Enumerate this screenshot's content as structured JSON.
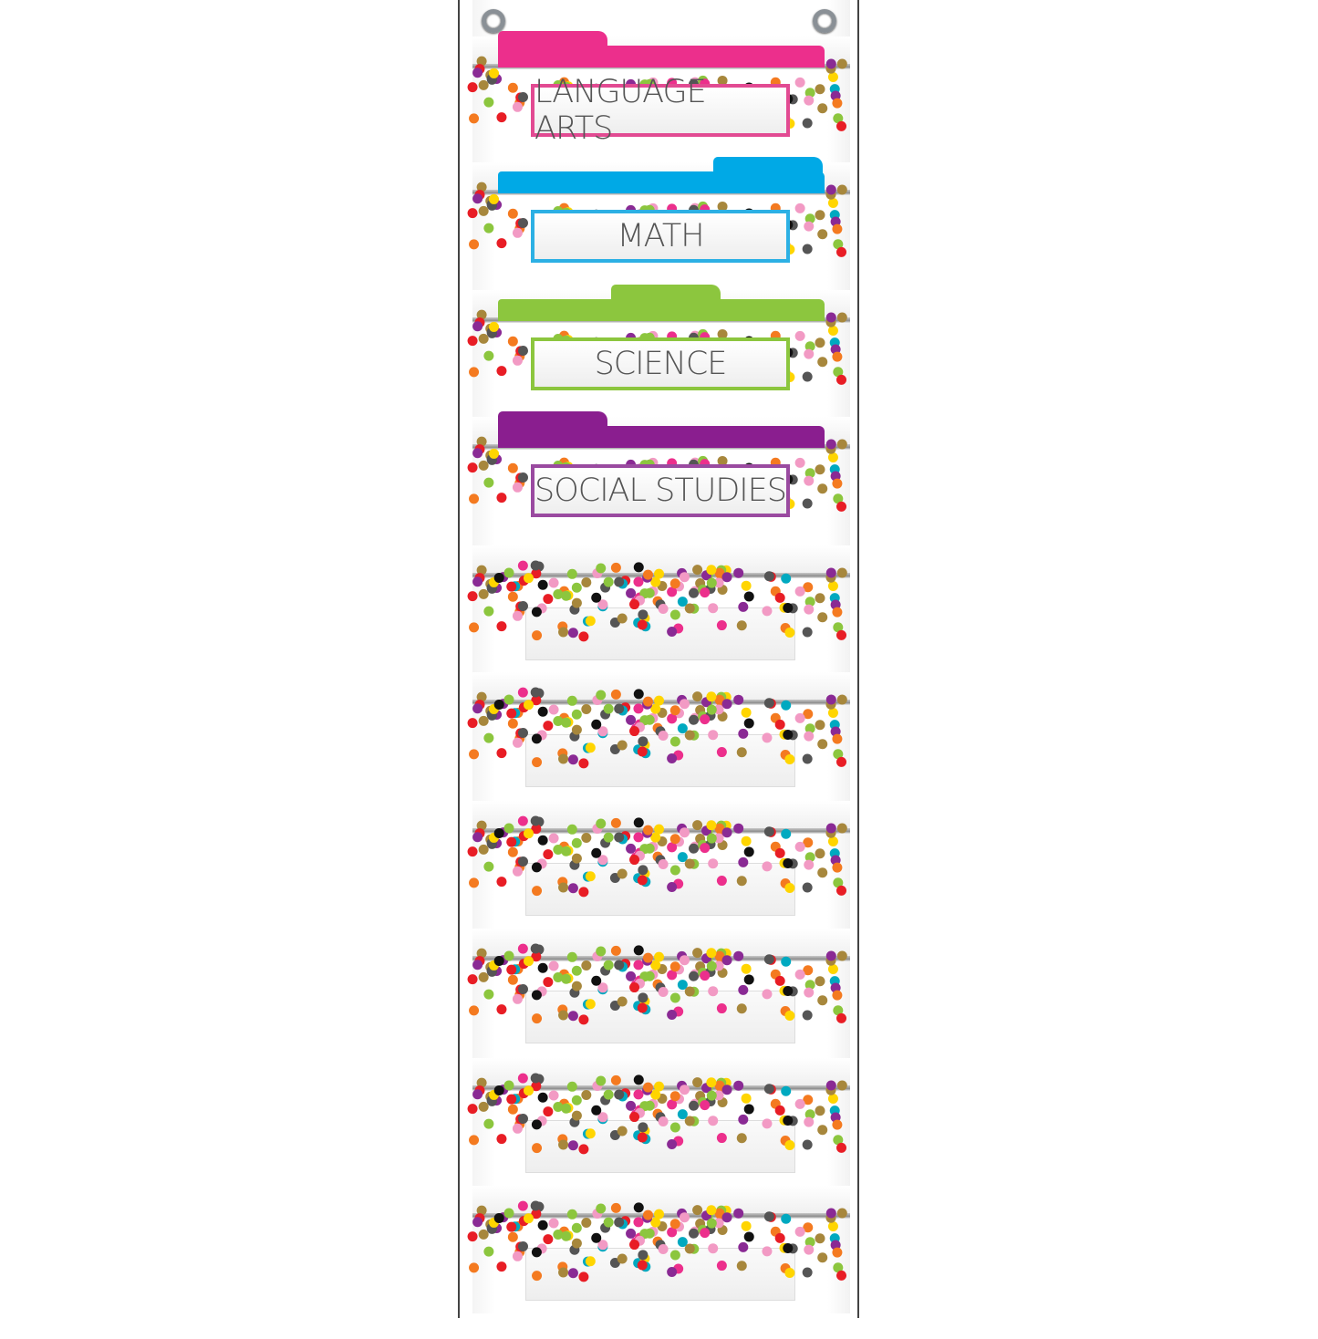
{
  "pockets": [
    {
      "label": "LANGUAGE ARTS",
      "color": "#ec2f8c",
      "border": "#e24a92",
      "tab": "left"
    },
    {
      "label": "MATH",
      "color": "#00a9e6",
      "border": "#2cb0e4",
      "tab": "right"
    },
    {
      "label": "SCIENCE",
      "color": "#8cc63e",
      "border": "#8cc63e",
      "tab": "middle"
    },
    {
      "label": "SOCIAL STUDIES",
      "color": "#8a1e8f",
      "border": "#9a4aa0",
      "tab": "left"
    },
    {
      "label": ""
    },
    {
      "label": ""
    },
    {
      "label": ""
    },
    {
      "label": ""
    },
    {
      "label": ""
    },
    {
      "label": ""
    }
  ],
  "confetti_colors": [
    "#e81d25",
    "#8cc63e",
    "#f47a20",
    "#8a2a94",
    "#00a9c0",
    "#ffd500",
    "#111111",
    "#a7873c",
    "#f29ac4",
    "#ec2f8c",
    "#555555"
  ]
}
